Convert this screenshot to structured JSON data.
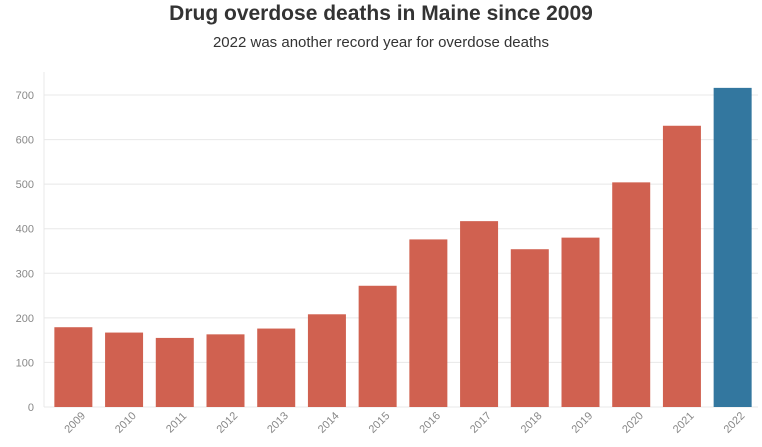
{
  "title": "Drug overdose deaths in Maine since 2009",
  "subtitle": "2022 was another record year for overdose deaths",
  "chart_data": {
    "type": "bar",
    "title": "Drug overdose deaths in Maine since 2009",
    "subtitle": "2022 was another record year for overdose deaths",
    "xlabel": "",
    "ylabel": "",
    "categories": [
      "2009",
      "2010",
      "2011",
      "2012",
      "2013",
      "2014",
      "2015",
      "2016",
      "2017",
      "2018",
      "2019",
      "2020",
      "2021",
      "2022"
    ],
    "values": [
      179,
      167,
      155,
      163,
      176,
      208,
      272,
      376,
      417,
      354,
      380,
      504,
      631,
      716
    ],
    "yticks": [
      0,
      100,
      200,
      300,
      400,
      500,
      600,
      700
    ],
    "ylim": [
      0,
      730
    ],
    "grid": true,
    "colors": {
      "default": "#d06150",
      "highlight": "#33779f",
      "highlight_category": "2022"
    }
  }
}
